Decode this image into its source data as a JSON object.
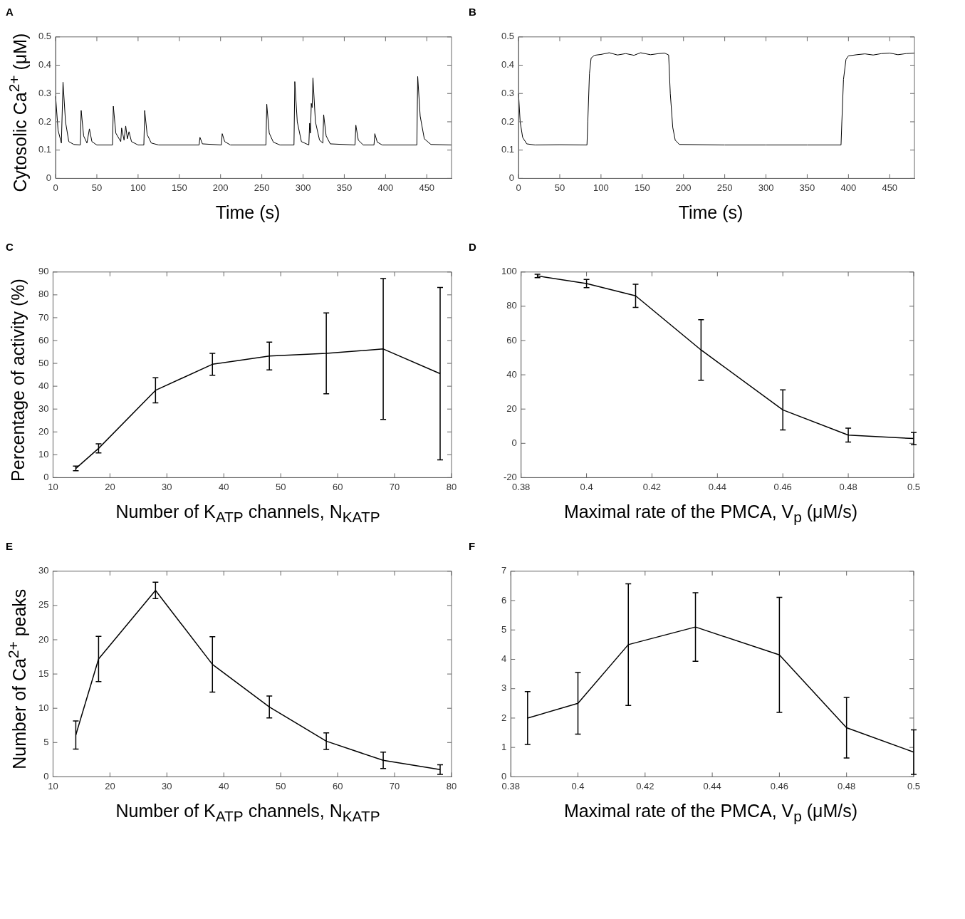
{
  "chart_data": [
    {
      "type": "line",
      "title": "A",
      "ylabel": "Cytosolic Ca$^{2+}$ (μM)",
      "xlabel": "Time (s)",
      "color": "#000000",
      "xlim": [
        0,
        480
      ],
      "xticks": [
        0,
        50,
        100,
        150,
        200,
        250,
        300,
        350,
        400,
        450
      ],
      "ylim": [
        0,
        0.5
      ],
      "yticks": [
        0,
        0.1,
        0.2,
        0.3,
        0.4,
        0.5
      ],
      "x": [
        0,
        3,
        7,
        9,
        12,
        16,
        22,
        30,
        31,
        34,
        38,
        41,
        44,
        50,
        69,
        70,
        73,
        79,
        80,
        83,
        85,
        87,
        89,
        92,
        100,
        107,
        108,
        111,
        116,
        125,
        174,
        175,
        178,
        201,
        202,
        205,
        212,
        255,
        256,
        259,
        264,
        272,
        289,
        290,
        293,
        298,
        307,
        308,
        309,
        310,
        311,
        312,
        315,
        320,
        324,
        325,
        328,
        333,
        363,
        364,
        367,
        373,
        386,
        387,
        390,
        396,
        438,
        439,
        442,
        447,
        455,
        480
      ],
      "values": [
        0.29,
        0.17,
        0.125,
        0.34,
        0.2,
        0.13,
        0.12,
        0.118,
        0.24,
        0.15,
        0.125,
        0.175,
        0.13,
        0.118,
        0.118,
        0.255,
        0.16,
        0.13,
        0.178,
        0.135,
        0.185,
        0.14,
        0.165,
        0.13,
        0.118,
        0.118,
        0.24,
        0.155,
        0.125,
        0.118,
        0.118,
        0.145,
        0.122,
        0.118,
        0.158,
        0.13,
        0.118,
        0.118,
        0.262,
        0.16,
        0.128,
        0.118,
        0.118,
        0.342,
        0.2,
        0.13,
        0.118,
        0.195,
        0.16,
        0.265,
        0.25,
        0.355,
        0.2,
        0.135,
        0.125,
        0.225,
        0.15,
        0.122,
        0.118,
        0.188,
        0.135,
        0.118,
        0.118,
        0.158,
        0.128,
        0.118,
        0.118,
        0.36,
        0.22,
        0.14,
        0.12,
        0.118
      ]
    },
    {
      "type": "line",
      "title": "B",
      "xlabel": "Time (s)",
      "color": "#000000",
      "xlim": [
        0,
        480
      ],
      "xticks": [
        0,
        50,
        100,
        150,
        200,
        250,
        300,
        350,
        400,
        450
      ],
      "ylim": [
        0,
        0.5
      ],
      "yticks": [
        0,
        0.1,
        0.2,
        0.3,
        0.4,
        0.5
      ],
      "x": [
        0,
        2,
        5,
        10,
        20,
        50,
        83,
        84,
        86,
        88,
        92,
        100,
        110,
        120,
        130,
        140,
        148,
        160,
        170,
        177,
        182,
        184,
        187,
        190,
        195,
        250,
        300,
        350,
        391,
        392,
        394,
        397,
        400,
        410,
        420,
        430,
        440,
        450,
        460,
        470,
        480
      ],
      "values": [
        0.3,
        0.2,
        0.145,
        0.122,
        0.118,
        0.119,
        0.118,
        0.2,
        0.37,
        0.425,
        0.435,
        0.438,
        0.444,
        0.436,
        0.441,
        0.435,
        0.444,
        0.437,
        0.441,
        0.443,
        0.436,
        0.3,
        0.18,
        0.135,
        0.12,
        0.118,
        0.118,
        0.118,
        0.118,
        0.2,
        0.35,
        0.42,
        0.433,
        0.437,
        0.44,
        0.436,
        0.441,
        0.443,
        0.437,
        0.441,
        0.443
      ]
    },
    {
      "type": "line",
      "title": "C",
      "ylabel": "Percentage of activity (%)",
      "xlabel": "Number of K$_{ATP}$ channels, N$_{KATP}$",
      "color": "#000000",
      "xlim": [
        10,
        80
      ],
      "xticks": [
        10,
        20,
        30,
        40,
        50,
        60,
        70,
        80
      ],
      "ylim": [
        0,
        90
      ],
      "yticks": [
        0,
        10,
        20,
        30,
        40,
        50,
        60,
        70,
        80,
        90
      ],
      "x": [
        14,
        18,
        28,
        38,
        48,
        58,
        68,
        78
      ],
      "values": [
        4,
        12.8,
        38.2,
        49.6,
        53.2,
        54.4,
        56.3,
        45.5
      ],
      "errors": [
        1,
        2,
        5.5,
        4.8,
        6.1,
        17.7,
        30.8,
        37.7
      ]
    },
    {
      "type": "line",
      "title": "D",
      "xlabel": "Maximal rate of the PMCA, V$_{p}$ (μM/s)",
      "color": "#000000",
      "xlim": [
        0.38,
        0.5
      ],
      "xticks": [
        0.38,
        0.4,
        0.42,
        0.44,
        0.46,
        0.48,
        0.5
      ],
      "ylim": [
        -20,
        100
      ],
      "yticks": [
        -20,
        0,
        20,
        40,
        60,
        80,
        100
      ],
      "x": [
        0.385,
        0.4,
        0.415,
        0.435,
        0.46,
        0.48,
        0.5
      ],
      "values": [
        97.7,
        93.3,
        86.1,
        54.5,
        19.5,
        4.8,
        2.8
      ],
      "errors": [
        1,
        2.4,
        6.8,
        17.7,
        11.7,
        4.1,
        3.6
      ]
    },
    {
      "type": "line",
      "title": "E",
      "ylabel": "Number of Ca$^{2+}$ peaks",
      "xlabel": "Number of K$_{ATP}$ channels, N$_{KATP}$",
      "color": "#000000",
      "xlim": [
        10,
        80
      ],
      "xticks": [
        10,
        20,
        30,
        40,
        50,
        60,
        70,
        80
      ],
      "ylim": [
        0,
        30
      ],
      "yticks": [
        0,
        5,
        10,
        15,
        20,
        25,
        30
      ],
      "x": [
        14,
        18,
        28,
        38,
        48,
        58,
        68,
        78
      ],
      "values": [
        6.1,
        17.2,
        27.2,
        16.4,
        10.2,
        5.2,
        2.4,
        1.05
      ],
      "errors": [
        2.05,
        3.3,
        1.2,
        4.05,
        1.6,
        1.2,
        1.2,
        0.7
      ]
    },
    {
      "type": "line",
      "title": "F",
      "xlabel": "Maximal rate of the PMCA, V$_{p}$ (μM/s)",
      "color": "#000000",
      "xlim": [
        0.38,
        0.5
      ],
      "xticks": [
        0.38,
        0.4,
        0.42,
        0.44,
        0.46,
        0.48,
        0.5
      ],
      "ylim": [
        0,
        7
      ],
      "yticks": [
        0,
        1,
        2,
        3,
        4,
        5,
        6,
        7
      ],
      "x": [
        0.385,
        0.4,
        0.415,
        0.435,
        0.46,
        0.48,
        0.5
      ],
      "values": [
        2,
        2.5,
        4.5,
        5.1,
        4.15,
        1.67,
        0.84
      ],
      "errors": [
        0.9,
        1.05,
        2.07,
        1.17,
        1.96,
        1.03,
        0.76
      ]
    }
  ]
}
